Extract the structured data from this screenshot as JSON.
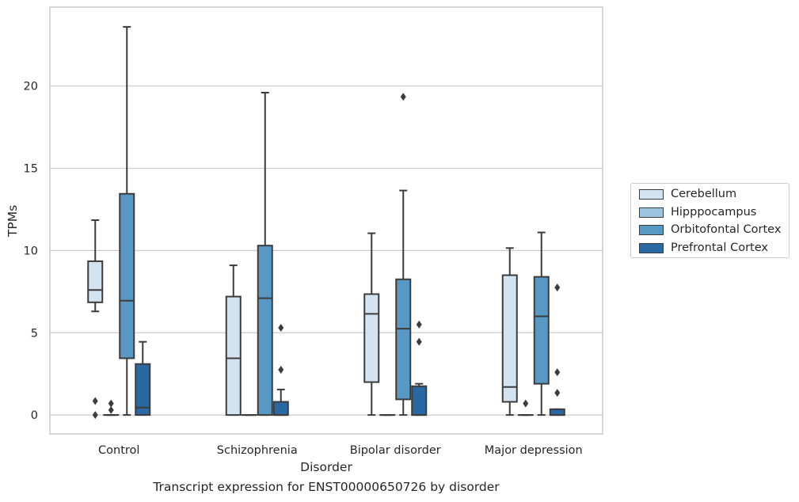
{
  "caption": "Transcript expression for ENST00000650726 by disorder",
  "chart_data": {
    "type": "box",
    "xlabel": "Disorder",
    "ylabel": "TPMs",
    "ylim": [
      -1.15,
      24.8
    ],
    "yticks": [
      0,
      5,
      10,
      15,
      20
    ],
    "grid": true,
    "legend_position": "right",
    "categories": [
      "Control",
      "Schizophrenia",
      "Bipolar disorder",
      "Major depression"
    ],
    "series": [
      {
        "name": "Cerebellum",
        "color": "#d4e3f2",
        "boxes": [
          {
            "whislo": 6.3,
            "q1": 6.85,
            "med": 7.6,
            "q3": 9.35,
            "whishi": 11.85,
            "fliers": [
              0.85,
              0.0
            ]
          },
          {
            "whislo": 0.0,
            "q1": 0.0,
            "med": 3.45,
            "q3": 7.2,
            "whishi": 9.1,
            "fliers": []
          },
          {
            "whislo": 0.0,
            "q1": 2.0,
            "med": 6.15,
            "q3": 7.35,
            "whishi": 11.05,
            "fliers": []
          },
          {
            "whislo": 0.0,
            "q1": 0.8,
            "med": 1.7,
            "q3": 8.5,
            "whishi": 10.15,
            "fliers": []
          }
        ]
      },
      {
        "name": "Hipppocampus",
        "color": "#9dc4df",
        "boxes": [
          {
            "whislo": 0.0,
            "q1": 0.0,
            "med": 0.0,
            "q3": 0.0,
            "whishi": 0.0,
            "fliers": [
              0.7,
              0.3
            ]
          },
          {
            "whislo": 0.0,
            "q1": 0.0,
            "med": 0.0,
            "q3": 0.0,
            "whishi": 0.0,
            "fliers": []
          },
          {
            "whislo": 0.0,
            "q1": 0.0,
            "med": 0.0,
            "q3": 0.0,
            "whishi": 0.0,
            "fliers": []
          },
          {
            "whislo": 0.0,
            "q1": 0.0,
            "med": 0.0,
            "q3": 0.0,
            "whishi": 0.0,
            "fliers": [
              0.7
            ]
          }
        ]
      },
      {
        "name": "Orbitofontal Cortex",
        "color": "#5a98c4",
        "boxes": [
          {
            "whislo": 0.0,
            "q1": 3.45,
            "med": 6.95,
            "q3": 13.45,
            "whishi": 23.6,
            "fliers": []
          },
          {
            "whislo": 0.0,
            "q1": 0.0,
            "med": 7.1,
            "q3": 10.3,
            "whishi": 19.6,
            "fliers": []
          },
          {
            "whislo": 0.0,
            "q1": 0.95,
            "med": 5.25,
            "q3": 8.25,
            "whishi": 13.65,
            "fliers": [
              19.35
            ]
          },
          {
            "whislo": 0.0,
            "q1": 1.9,
            "med": 6.0,
            "q3": 8.4,
            "whishi": 11.1,
            "fliers": []
          }
        ]
      },
      {
        "name": "Prefrontal Cortex",
        "color": "#2a68a4",
        "boxes": [
          {
            "whislo": 0.0,
            "q1": 0.0,
            "med": 0.45,
            "q3": 3.1,
            "whishi": 4.45,
            "fliers": []
          },
          {
            "whislo": 0.0,
            "q1": 0.0,
            "med": 0.0,
            "q3": 0.8,
            "whishi": 1.55,
            "fliers": [
              5.3,
              2.75
            ]
          },
          {
            "whislo": 0.0,
            "q1": 0.0,
            "med": 0.0,
            "q3": 1.75,
            "whishi": 1.9,
            "fliers": [
              5.5,
              4.45
            ]
          },
          {
            "whislo": 0.0,
            "q1": 0.0,
            "med": 0.0,
            "q3": 0.35,
            "whishi": 0.35,
            "fliers": [
              7.75,
              2.6,
              1.35
            ]
          }
        ]
      }
    ]
  }
}
